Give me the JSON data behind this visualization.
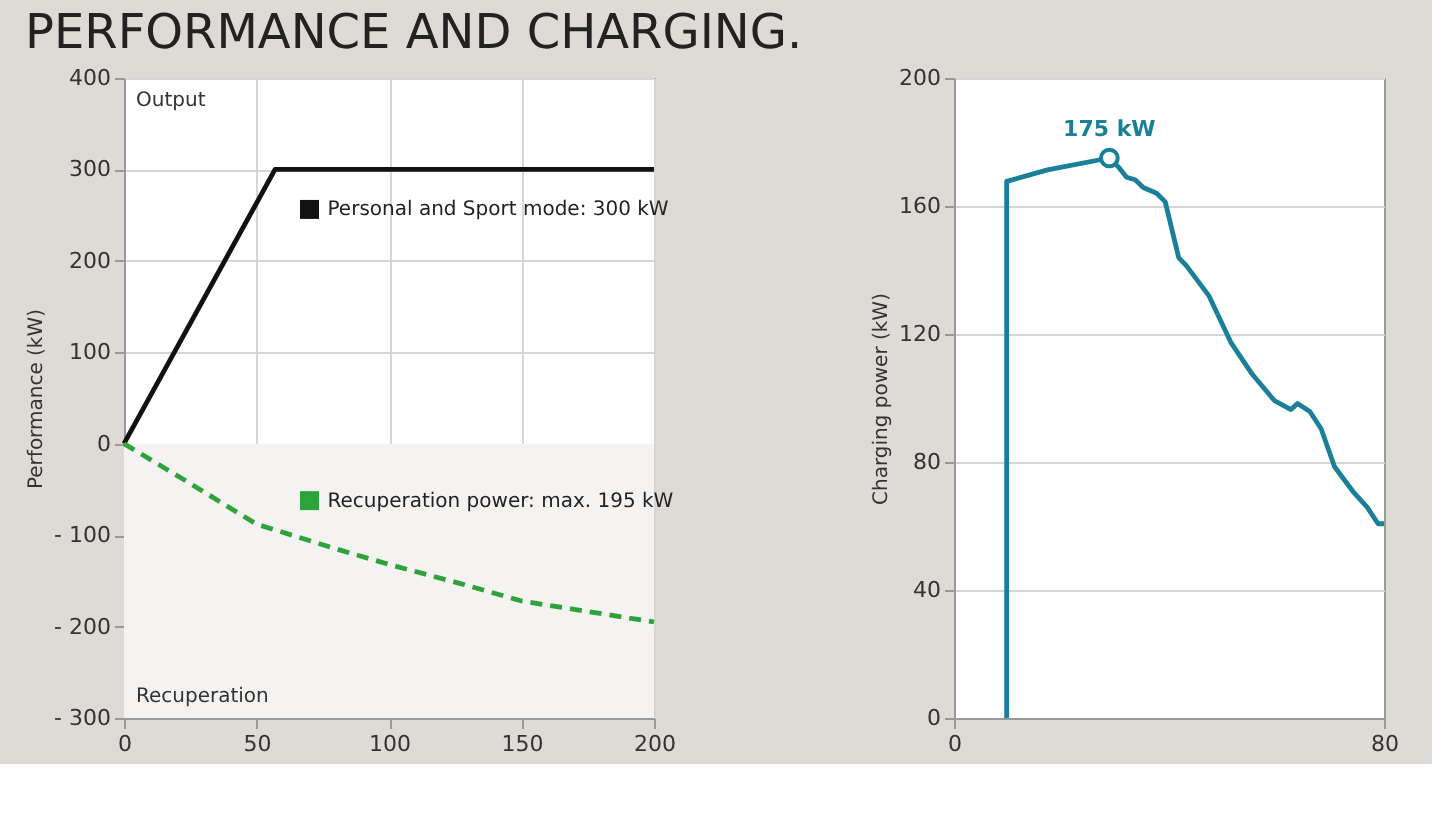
{
  "chart_data": [
    {
      "type": "line",
      "title": "PERFORMANCE AND CHARGING.",
      "ylabel": "Performance (kW)",
      "xlim": [
        0,
        200
      ],
      "xticks": [
        0,
        50,
        100,
        150,
        200
      ],
      "ylim": [
        -300,
        400
      ],
      "yticks": [
        {
          "value": -300,
          "label": "- 300"
        },
        {
          "value": -200,
          "label": "- 200"
        },
        {
          "value": -100,
          "label": "- 100"
        },
        0,
        100,
        200,
        300,
        400
      ],
      "grid": true,
      "legend": "center",
      "annotations": [
        "Output",
        "Recuperation"
      ],
      "bands": [
        {
          "axis": "y",
          "from": -300,
          "to": 0,
          "color": "#f4f3f1"
        }
      ],
      "series": [
        {
          "name": "Personal and Sport mode: 300 kW",
          "color": "#111111",
          "x": [
            0,
            57,
            200
          ],
          "values": [
            0,
            300,
            300
          ],
          "line_style": "solid"
        },
        {
          "name": "Recuperation power: max. 195 kW",
          "color": "#2ea33c",
          "x": [
            0,
            23,
            50,
            80,
            100,
            127,
            150,
            200
          ],
          "values": [
            0,
            -40,
            -88,
            -115,
            -132,
            -153,
            -172,
            -195
          ],
          "line_style": "dashed"
        }
      ]
    },
    {
      "type": "line",
      "ylabel": "Charging power (kW)",
      "xlim": [
        0,
        80
      ],
      "xticks": [
        0,
        80
      ],
      "ylim": [
        0,
        200
      ],
      "yticks": [
        0,
        40,
        80,
        120,
        160,
        200
      ],
      "grid": "y",
      "annotations": [
        {
          "text": "175 kW",
          "x": 28.9,
          "y": 175
        }
      ],
      "series": [
        {
          "color": "#1a7f99",
          "x": [
            9.8,
            9.8,
            17.4,
            28.9,
            30.6,
            32.1,
            33.7,
            35.2,
            37.7,
            39.3,
            41.8,
            43.3,
            47.4,
            51.5,
            55.5,
            59.6,
            62.7,
            63.9,
            66.2,
            68.3,
            70.8,
            74.4,
            76.9,
            78.9,
            80
          ],
          "values": [
            0,
            167.7,
            171.3,
            175,
            172.2,
            169,
            168.2,
            165.8,
            164,
            161.3,
            143.9,
            141.2,
            132,
            117.4,
            107.4,
            99.2,
            96.4,
            98.3,
            95.8,
            90.4,
            78.5,
            70.4,
            65.8,
            60.7,
            60.7
          ],
          "line_style": "solid"
        }
      ]
    }
  ]
}
